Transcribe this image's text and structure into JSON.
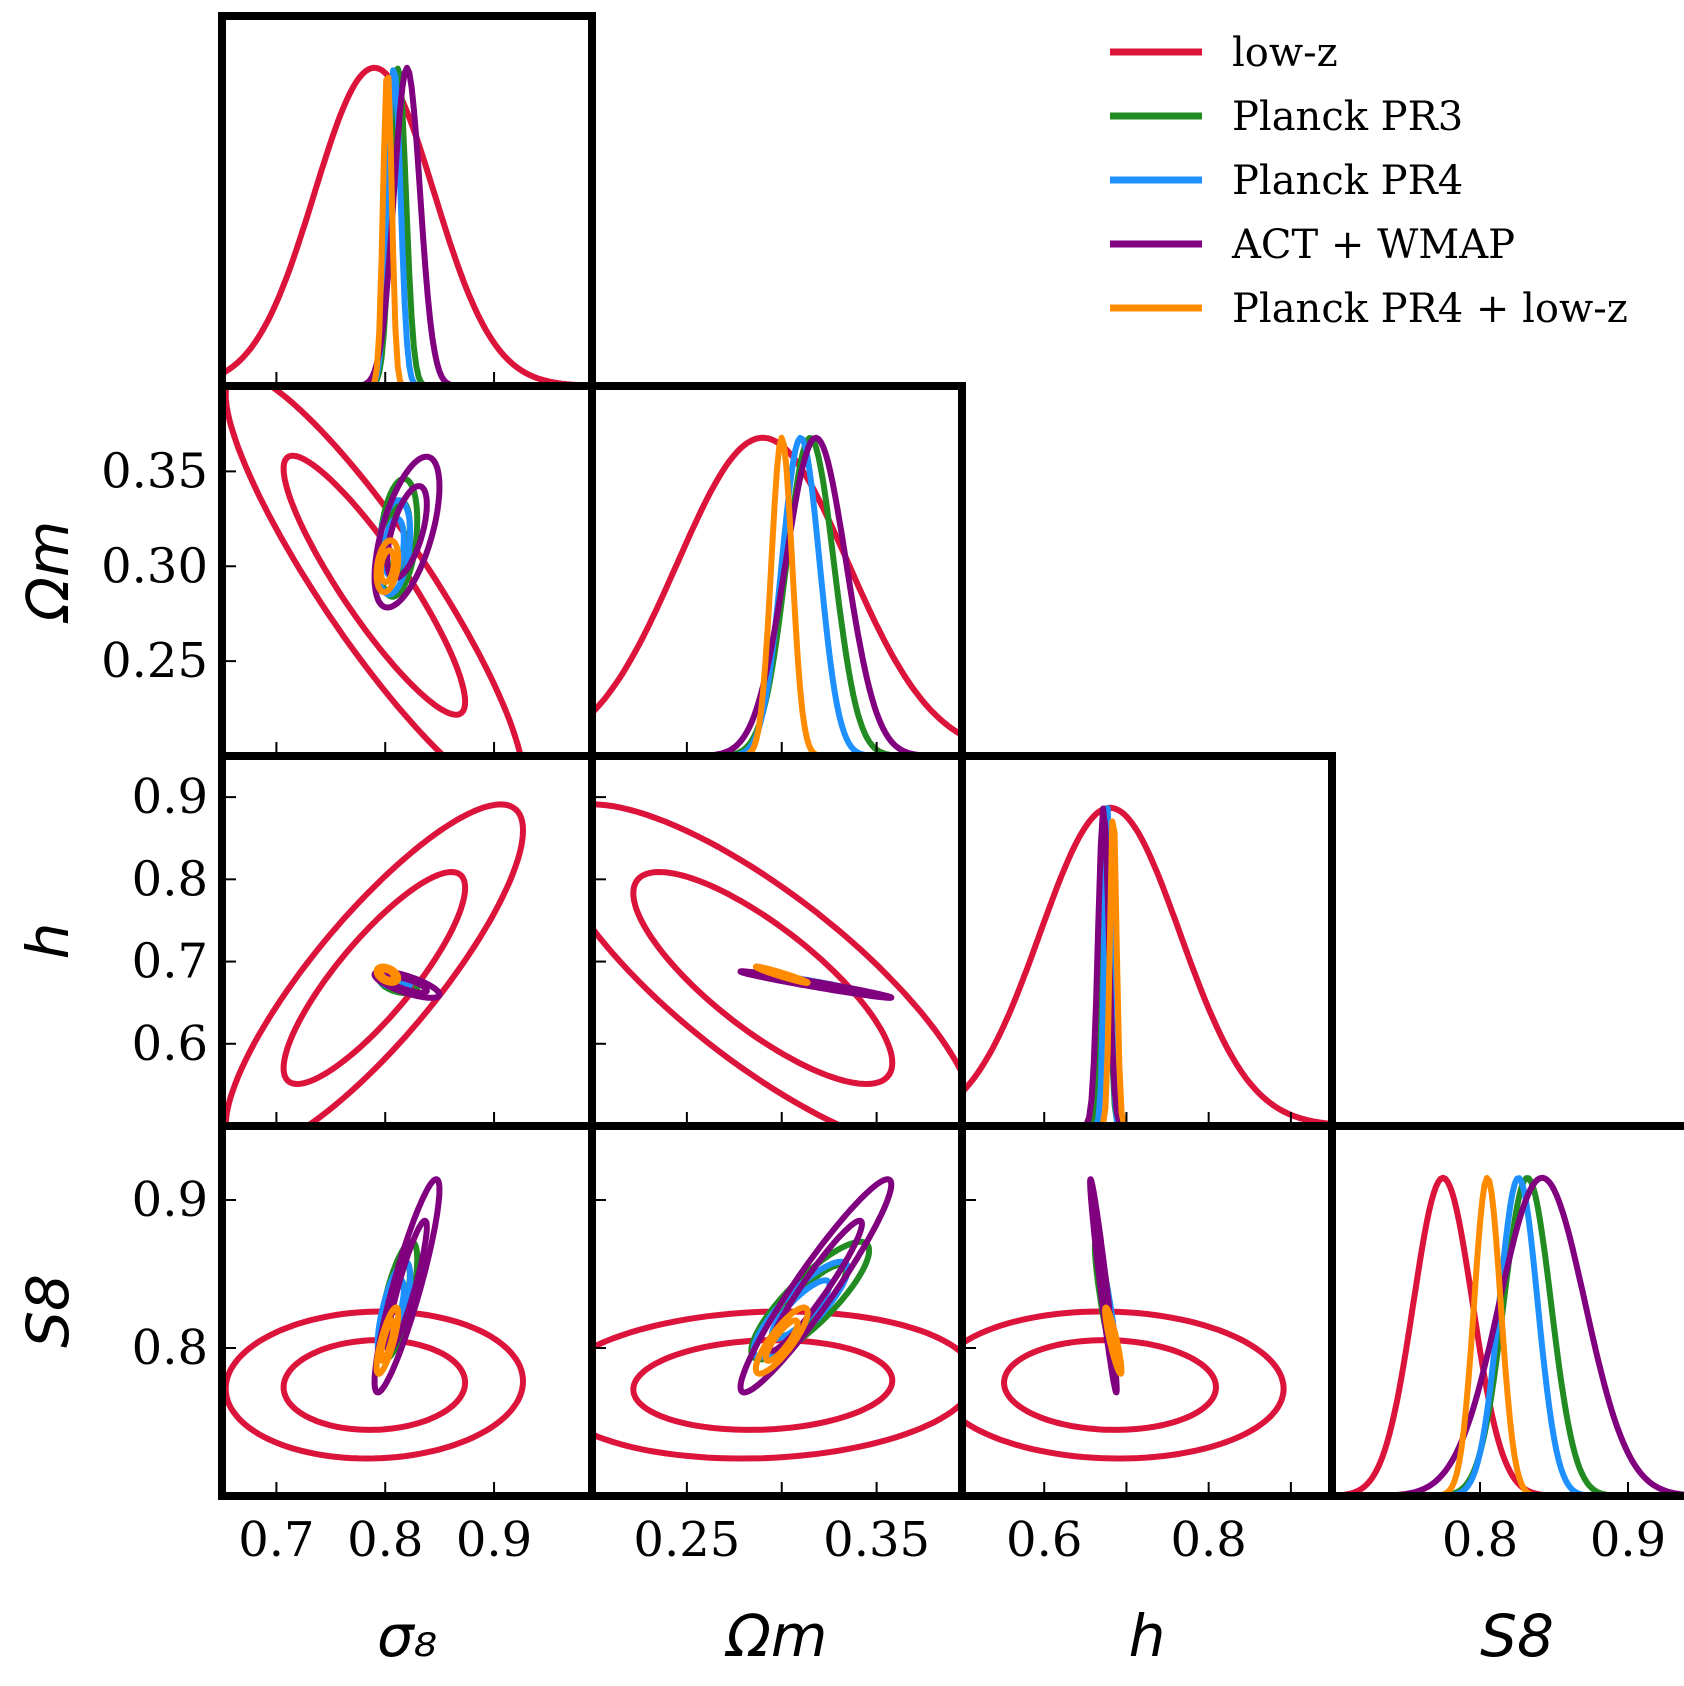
{
  "chart_data": {
    "type": "corner",
    "parameters": [
      {
        "key": "sigma8",
        "label": "σ₈",
        "range": [
          0.65,
          0.99
        ],
        "ticks": [
          "0.7",
          "0.8",
          "0.9"
        ],
        "tick_values": [
          0.7,
          0.8,
          0.9
        ]
      },
      {
        "key": "Om",
        "label": "Ωm",
        "range": [
          0.2,
          0.395
        ],
        "ticks": [
          "0.25",
          "0.30",
          "0.35"
        ],
        "tick_values": [
          0.25,
          0.3,
          0.35
        ]
      },
      {
        "key": "h",
        "label": "h",
        "range": [
          0.5,
          0.95
        ],
        "ticks": [
          "0.6",
          "0.7",
          "0.8",
          "0.9"
        ],
        "tick_values": [
          0.6,
          0.7,
          0.8,
          0.9
        ]
      },
      {
        "key": "S8",
        "label": "S8",
        "range": [
          0.7,
          0.95
        ],
        "ticks": [
          "0.8",
          "0.9"
        ],
        "tick_values": [
          0.8,
          0.9
        ]
      }
    ],
    "y_axis_ticks": {
      "Om": [
        "0.25",
        "0.30",
        "0.35"
      ],
      "h": [
        "0.6",
        "0.7",
        "0.8",
        "0.9"
      ],
      "S8": [
        "0.8",
        "0.9"
      ]
    },
    "x_axis_ticks": {
      "sigma8": [
        "0.7",
        "0.8",
        "0.9"
      ],
      "Om": [
        "0.25",
        "0.35"
      ],
      "h": [
        "0.6",
        "0.8"
      ],
      "S8": [
        "0.8",
        "0.9"
      ]
    },
    "legend_position": "top-right",
    "series": [
      {
        "name": "low-z",
        "color": "#dc143c",
        "mean": {
          "sigma8": 0.79,
          "Om": 0.29,
          "h": 0.68,
          "S8": 0.775
        },
        "sd": {
          "sigma8": 0.055,
          "Om": 0.045,
          "h": 0.085,
          "S8": 0.02
        },
        "corr": {
          "sigma8-Om": -0.9,
          "sigma8-h": 0.85,
          "Om-h": -0.8,
          "sigma8-S8": 0.05,
          "Om-S8": 0.1,
          "h-S8": -0.05
        }
      },
      {
        "name": "Planck PR3",
        "color": "#228b22",
        "mean": {
          "sigma8": 0.812,
          "Om": 0.315,
          "h": 0.674,
          "S8": 0.832
        },
        "sd": {
          "sigma8": 0.007,
          "Om": 0.0125,
          "h": 0.005,
          "S8": 0.016
        },
        "corr": {
          "sigma8-Om": 0.3,
          "sigma8-h": -0.4,
          "Om-h": -0.98,
          "sigma8-S8": 0.7,
          "Om-S8": 0.85,
          "h-S8": -0.9
        }
      },
      {
        "name": "Planck PR4",
        "color": "#1e90ff",
        "mean": {
          "sigma8": 0.808,
          "Om": 0.31,
          "h": 0.677,
          "S8": 0.826
        },
        "sd": {
          "sigma8": 0.006,
          "Om": 0.01,
          "h": 0.004,
          "S8": 0.013
        },
        "corr": {
          "sigma8-Om": 0.3,
          "sigma8-h": -0.4,
          "Om-h": -0.98,
          "sigma8-S8": 0.7,
          "Om-S8": 0.85,
          "h-S8": -0.9
        }
      },
      {
        "name": "ACT + WMAP",
        "color": "#800080",
        "mean": {
          "sigma8": 0.82,
          "Om": 0.318,
          "h": 0.672,
          "S8": 0.842
        },
        "sd": {
          "sigma8": 0.012,
          "Om": 0.016,
          "h": 0.0065,
          "S8": 0.029
        },
        "corr": {
          "sigma8-Om": 0.6,
          "sigma8-h": -0.75,
          "Om-h": -0.98,
          "sigma8-S8": 0.9,
          "Om-S8": 0.95,
          "h-S8": -0.97
        }
      },
      {
        "name": "Planck PR4 + low-z",
        "color": "#ff8c00",
        "mean": {
          "sigma8": 0.802,
          "Om": 0.3,
          "h": 0.684,
          "S8": 0.805
        },
        "sd": {
          "sigma8": 0.004,
          "Om": 0.0055,
          "h": 0.004,
          "S8": 0.009
        },
        "corr": {
          "sigma8-Om": 0.3,
          "sigma8-h": -0.4,
          "Om-h": -0.97,
          "sigma8-S8": 0.8,
          "Om-S8": 0.85,
          "h-S8": -0.9
        }
      }
    ]
  }
}
